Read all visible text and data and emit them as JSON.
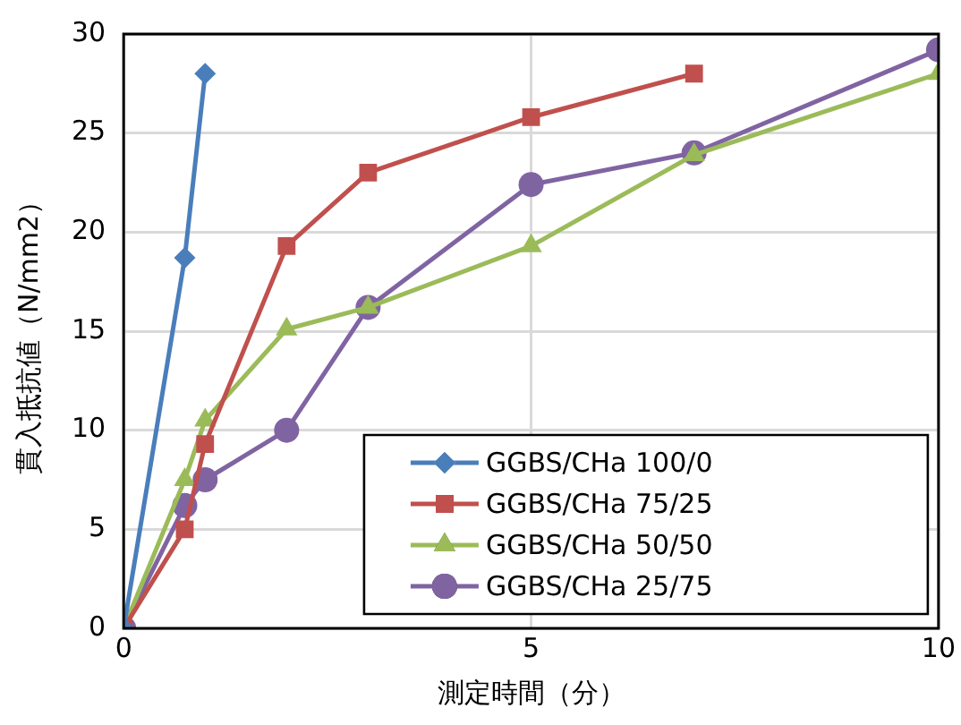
{
  "chart_data": {
    "type": "line",
    "xlabel": "測定時間（分）",
    "ylabel": "貫入抵抗値（N/mm2）",
    "xlim": [
      0,
      10
    ],
    "xticks": [
      0,
      5,
      10
    ],
    "ylim": [
      0,
      30
    ],
    "yticks": [
      0,
      5,
      10,
      15,
      20,
      25,
      30
    ],
    "grid": true,
    "legend": "bottom right",
    "line_style": "solid",
    "series": [
      {
        "name": "GGBS/CHa 100/0",
        "color": "#4a7ebb",
        "marker": "diamond",
        "x": [
          0,
          0.75,
          1
        ],
        "values": [
          0,
          18.7,
          28
        ]
      },
      {
        "name": "GGBS/CHa 75/25",
        "color": "#c0504d",
        "marker": "square",
        "x": [
          0,
          0.75,
          1,
          2,
          3,
          5,
          7
        ],
        "values": [
          0,
          5,
          9.3,
          19.3,
          23,
          25.8,
          28
        ]
      },
      {
        "name": "GGBS/CHa 50/50",
        "color": "#9bbb59",
        "marker": "triangle",
        "x": [
          0,
          0.75,
          1,
          2,
          3,
          5,
          7,
          10
        ],
        "values": [
          0,
          7.5,
          10.5,
          15.1,
          16.2,
          19.3,
          23.9,
          28
        ]
      },
      {
        "name": "GGBS/CHa 25/75",
        "color": "#8064a2",
        "marker": "circle",
        "x": [
          0,
          0.75,
          1,
          2,
          3,
          5,
          7,
          10
        ],
        "values": [
          0,
          6.2,
          7.5,
          10,
          16.2,
          22.4,
          24,
          29.2
        ]
      }
    ]
  }
}
